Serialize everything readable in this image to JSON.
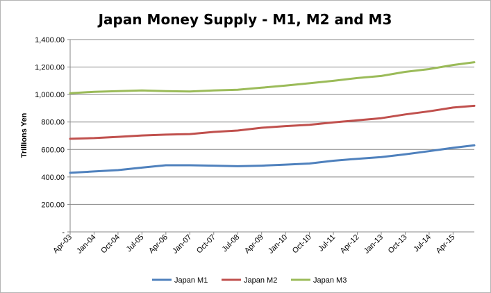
{
  "chart_data": {
    "type": "line",
    "title": "Japan Money Supply - M1, M2 and M3",
    "xlabel": "",
    "ylabel": "Trillions Yen",
    "ylim": [
      0,
      1400
    ],
    "grid": true,
    "legend_position": "bottom",
    "y_ticks": [
      "-",
      "200.00",
      "400.00",
      "600.00",
      "800.00",
      "1,000.00",
      "1,200.00",
      "1,400.00"
    ],
    "x_tick_labels": [
      "Apr-03",
      "Jan-04",
      "Oct-04",
      "Jul-05",
      "Apr-06",
      "Jan-07",
      "Oct-07",
      "Jul-08",
      "Apr-09",
      "Jan-10",
      "Oct-10",
      "Jul-11",
      "Apr-12",
      "Jan-13",
      "Oct-13",
      "Jul-14",
      "Apr-15"
    ],
    "x_start": "Apr-03",
    "x_end": "Dec-15",
    "anchors_note": "",
    "series": [
      {
        "name": "Japan M1",
        "color": "#4f81bd",
        "points": [
          [
            "Apr-03",
            430
          ],
          [
            "Jan-04",
            440
          ],
          [
            "Oct-04",
            450
          ],
          [
            "Jul-05",
            468
          ],
          [
            "Apr-06",
            485
          ],
          [
            "Jan-07",
            485
          ],
          [
            "Oct-07",
            482
          ],
          [
            "Jul-08",
            478
          ],
          [
            "Apr-09",
            482
          ],
          [
            "Jan-10",
            490
          ],
          [
            "Oct-10",
            498
          ],
          [
            "Jul-11",
            518
          ],
          [
            "Apr-12",
            532
          ],
          [
            "Jan-13",
            545
          ],
          [
            "Oct-13",
            565
          ],
          [
            "Jul-14",
            588
          ],
          [
            "Apr-15",
            612
          ],
          [
            "Dec-15",
            630
          ]
        ]
      },
      {
        "name": "Japan M2",
        "color": "#c0504d",
        "points": [
          [
            "Apr-03",
            678
          ],
          [
            "Jan-04",
            683
          ],
          [
            "Oct-04",
            692
          ],
          [
            "Jul-05",
            702
          ],
          [
            "Apr-06",
            708
          ],
          [
            "Jan-07",
            712
          ],
          [
            "Oct-07",
            728
          ],
          [
            "Jul-08",
            738
          ],
          [
            "Apr-09",
            758
          ],
          [
            "Jan-10",
            770
          ],
          [
            "Oct-10",
            780
          ],
          [
            "Jul-11",
            797
          ],
          [
            "Apr-12",
            812
          ],
          [
            "Jan-13",
            828
          ],
          [
            "Oct-13",
            855
          ],
          [
            "Jul-14",
            878
          ],
          [
            "Apr-15",
            905
          ],
          [
            "Dec-15",
            918
          ]
        ]
      },
      {
        "name": "Japan M3",
        "color": "#9bbb59",
        "points": [
          [
            "Apr-03",
            1010
          ],
          [
            "Jan-04",
            1020
          ],
          [
            "Oct-04",
            1025
          ],
          [
            "Jul-05",
            1030
          ],
          [
            "Apr-06",
            1025
          ],
          [
            "Jan-07",
            1022
          ],
          [
            "Oct-07",
            1030
          ],
          [
            "Jul-08",
            1035
          ],
          [
            "Apr-09",
            1050
          ],
          [
            "Jan-10",
            1065
          ],
          [
            "Oct-10",
            1082
          ],
          [
            "Jul-11",
            1100
          ],
          [
            "Apr-12",
            1120
          ],
          [
            "Jan-13",
            1135
          ],
          [
            "Oct-13",
            1165
          ],
          [
            "Jul-14",
            1185
          ],
          [
            "Apr-15",
            1215
          ],
          [
            "Dec-15",
            1235
          ]
        ]
      }
    ]
  }
}
